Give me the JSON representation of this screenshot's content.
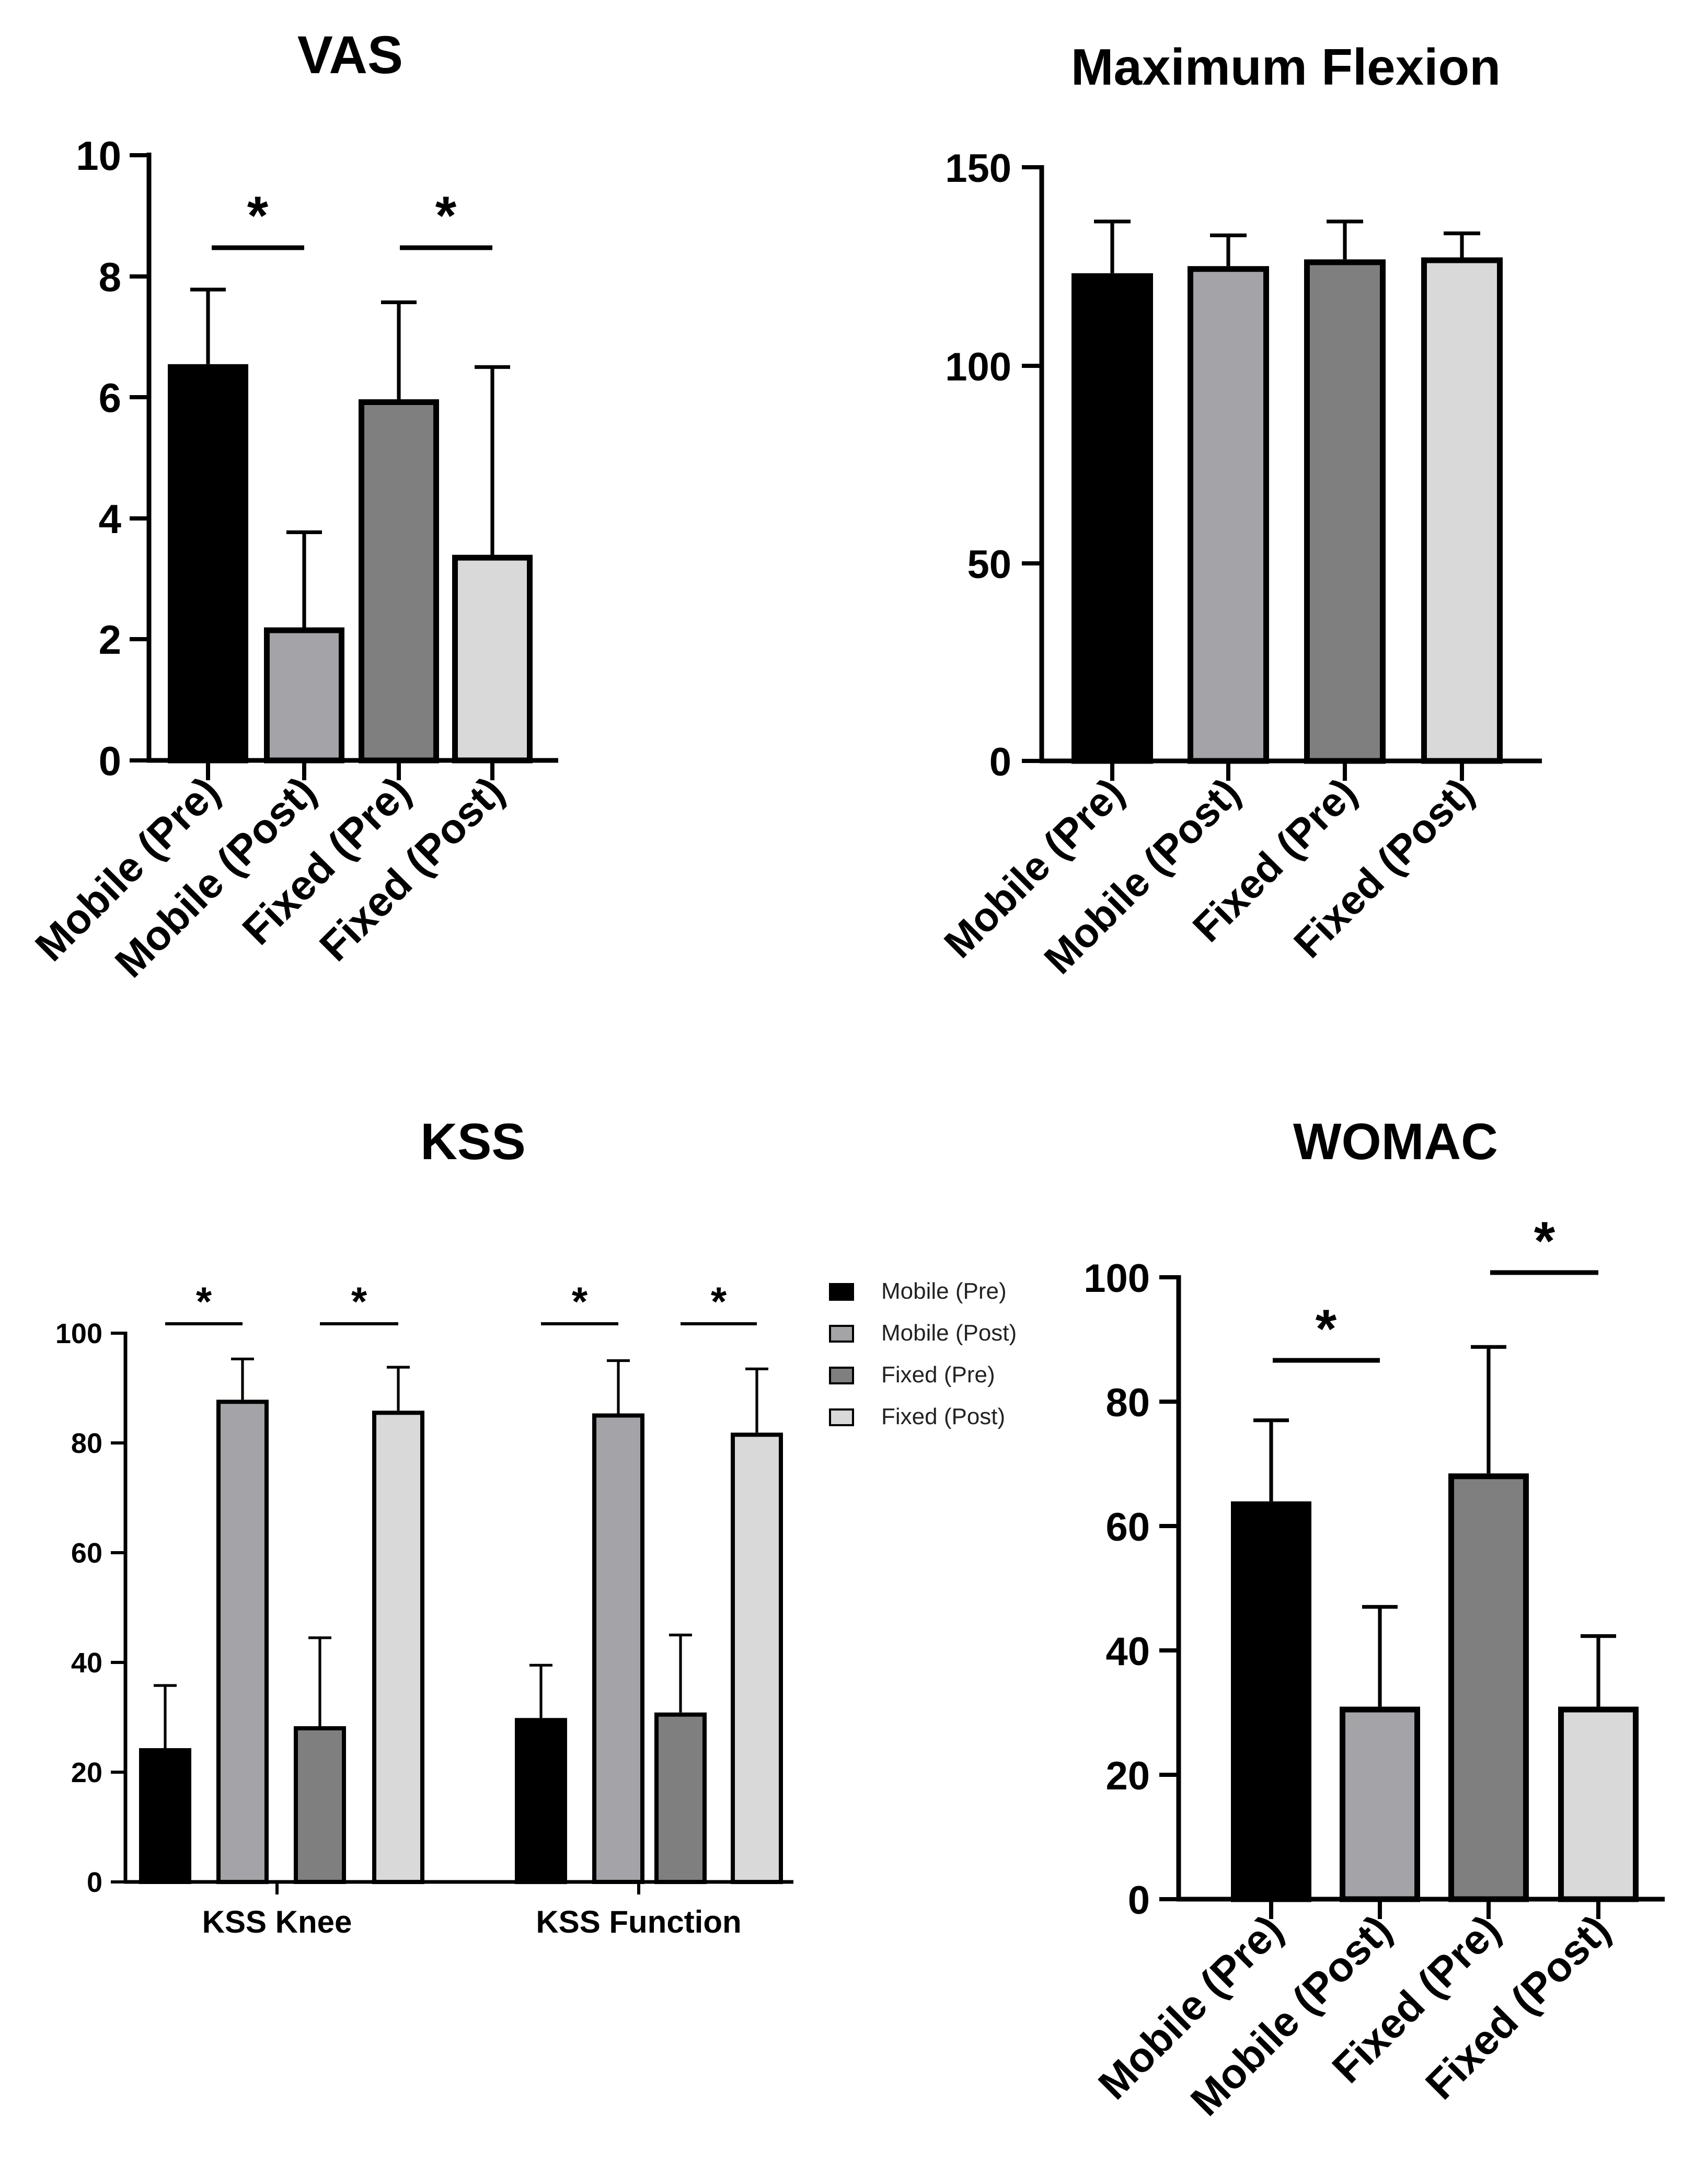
{
  "colors": {
    "mobile_pre": "#000000",
    "mobile_post": "#a3a3a8",
    "fixed_pre": "#7f7f7f",
    "fixed_post": "#d9d9d9",
    "outline": "#000000"
  },
  "legend": {
    "items": [
      "Mobile (Pre)",
      "Mobile (Post)",
      "Fixed (Pre)",
      "Fixed (Post)"
    ]
  },
  "chart_data": [
    {
      "id": "vas",
      "type": "bar",
      "title": "VAS",
      "categories": [
        "Mobile (Pre)",
        "Mobile (Post)",
        "Fixed (Pre)",
        "Fixed (Post)"
      ],
      "values": [
        6.5,
        2.15,
        5.92,
        3.35
      ],
      "errors": [
        1.28,
        1.62,
        1.65,
        3.15
      ],
      "yticks": [
        "0",
        "2",
        "4",
        "6",
        "8",
        "10"
      ],
      "ylim": [
        0,
        10
      ],
      "significance": [
        {
          "pair": [
            0,
            1
          ],
          "label": "*"
        },
        {
          "pair": [
            2,
            3
          ],
          "label": "*"
        }
      ]
    },
    {
      "id": "flex",
      "type": "bar",
      "title": "Maximum Flexion",
      "categories": [
        "Mobile (Pre)",
        "Mobile (Post)",
        "Fixed (Pre)",
        "Fixed (Post)"
      ],
      "values": [
        122.5,
        124.3,
        126.0,
        126.5
      ],
      "errors": [
        13.8,
        8.5,
        10.3,
        6.8
      ],
      "yticks": [
        "0",
        "50",
        "100",
        "150"
      ],
      "ylim": [
        0,
        150
      ],
      "significance": []
    },
    {
      "id": "kss",
      "type": "bar",
      "title": "KSS",
      "groups": [
        "KSS Knee",
        "KSS Function"
      ],
      "series": [
        {
          "name": "Mobile (Pre)",
          "values": [
            24.0,
            29.5
          ],
          "errors": [
            11.8,
            10.0
          ]
        },
        {
          "name": "Mobile (Post)",
          "values": [
            87.5,
            85.0
          ],
          "errors": [
            7.8,
            10.0
          ]
        },
        {
          "name": "Fixed (Pre)",
          "values": [
            28.0,
            30.5
          ],
          "errors": [
            16.5,
            14.5
          ]
        },
        {
          "name": "Fixed (Post)",
          "values": [
            85.5,
            81.5
          ],
          "errors": [
            8.3,
            12.0
          ]
        }
      ],
      "yticks": [
        "0",
        "20",
        "40",
        "60",
        "80",
        "100"
      ],
      "ylim": [
        0,
        100
      ],
      "legend_position": "top-right",
      "significance": [
        {
          "group": 0,
          "pair": [
            0,
            1
          ],
          "label": "*"
        },
        {
          "group": 0,
          "pair": [
            2,
            3
          ],
          "label": "*"
        },
        {
          "group": 1,
          "pair": [
            0,
            1
          ],
          "label": "*"
        },
        {
          "group": 1,
          "pair": [
            2,
            3
          ],
          "label": "*"
        }
      ]
    },
    {
      "id": "womac",
      "type": "bar",
      "title": "WOMAC",
      "categories": [
        "Mobile (Pre)",
        "Mobile (Post)",
        "Fixed (Pre)",
        "Fixed (Post)"
      ],
      "values": [
        63.5,
        30.5,
        68.0,
        30.5
      ],
      "errors": [
        13.5,
        16.5,
        20.8,
        11.8
      ],
      "yticks": [
        "0",
        "20",
        "40",
        "60",
        "80",
        "100"
      ],
      "ylim": [
        0,
        100
      ],
      "significance": [
        {
          "pair": [
            0,
            1
          ],
          "label": "*"
        },
        {
          "pair": [
            2,
            3
          ],
          "label": "*"
        }
      ]
    }
  ]
}
